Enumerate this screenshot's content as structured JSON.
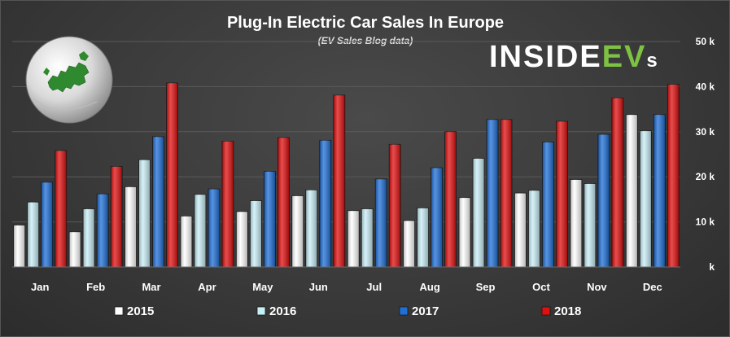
{
  "chart_data": {
    "type": "bar",
    "title": "Plug-In Electric Car Sales In Europe",
    "subtitle": "(EV Sales Blog data)",
    "categories": [
      "Jan",
      "Feb",
      "Mar",
      "Apr",
      "May",
      "Jun",
      "Jul",
      "Aug",
      "Sep",
      "Oct",
      "Nov",
      "Dec"
    ],
    "series": [
      {
        "name": "2015",
        "color": "#ffffff",
        "values": [
          9.3,
          7.8,
          17.8,
          11.3,
          12.3,
          15.8,
          12.5,
          10.3,
          15.4,
          16.4,
          19.4,
          33.8
        ]
      },
      {
        "name": "2016",
        "color": "#c8eef6",
        "values": [
          14.4,
          12.9,
          23.8,
          16.1,
          14.7,
          17.1,
          12.9,
          13.1,
          24.1,
          17.0,
          18.5,
          30.2
        ]
      },
      {
        "name": "2017",
        "color": "#1f6fd6",
        "values": [
          18.8,
          16.2,
          28.9,
          17.3,
          21.2,
          28.1,
          19.5,
          22.0,
          32.7,
          27.7,
          29.4,
          33.8
        ]
      },
      {
        "name": "2018",
        "color": "#e01010",
        "values": [
          25.8,
          22.3,
          40.8,
          27.9,
          28.7,
          38.1,
          27.2,
          30.0,
          32.7,
          32.3,
          37.5,
          40.5
        ]
      }
    ],
    "yticks": [
      {
        "value": 0,
        "label": "k"
      },
      {
        "value": 10,
        "label": "10 k"
      },
      {
        "value": 20,
        "label": "20 k"
      },
      {
        "value": 30,
        "label": "30 k"
      },
      {
        "value": 40,
        "label": "40 k"
      },
      {
        "value": 50,
        "label": "50 k"
      }
    ],
    "ylim": [
      0,
      50
    ],
    "grid": true,
    "legend_position": "bottom"
  },
  "logo": {
    "prefix": "INSIDE",
    "highlight": "EV",
    "suffix": "s"
  },
  "colors": {
    "logo_text": "#ffffff",
    "logo_highlight": "#7dc243",
    "globe_land": "#2f8a2f"
  },
  "globe": {
    "icon": "europe-globe-icon"
  }
}
